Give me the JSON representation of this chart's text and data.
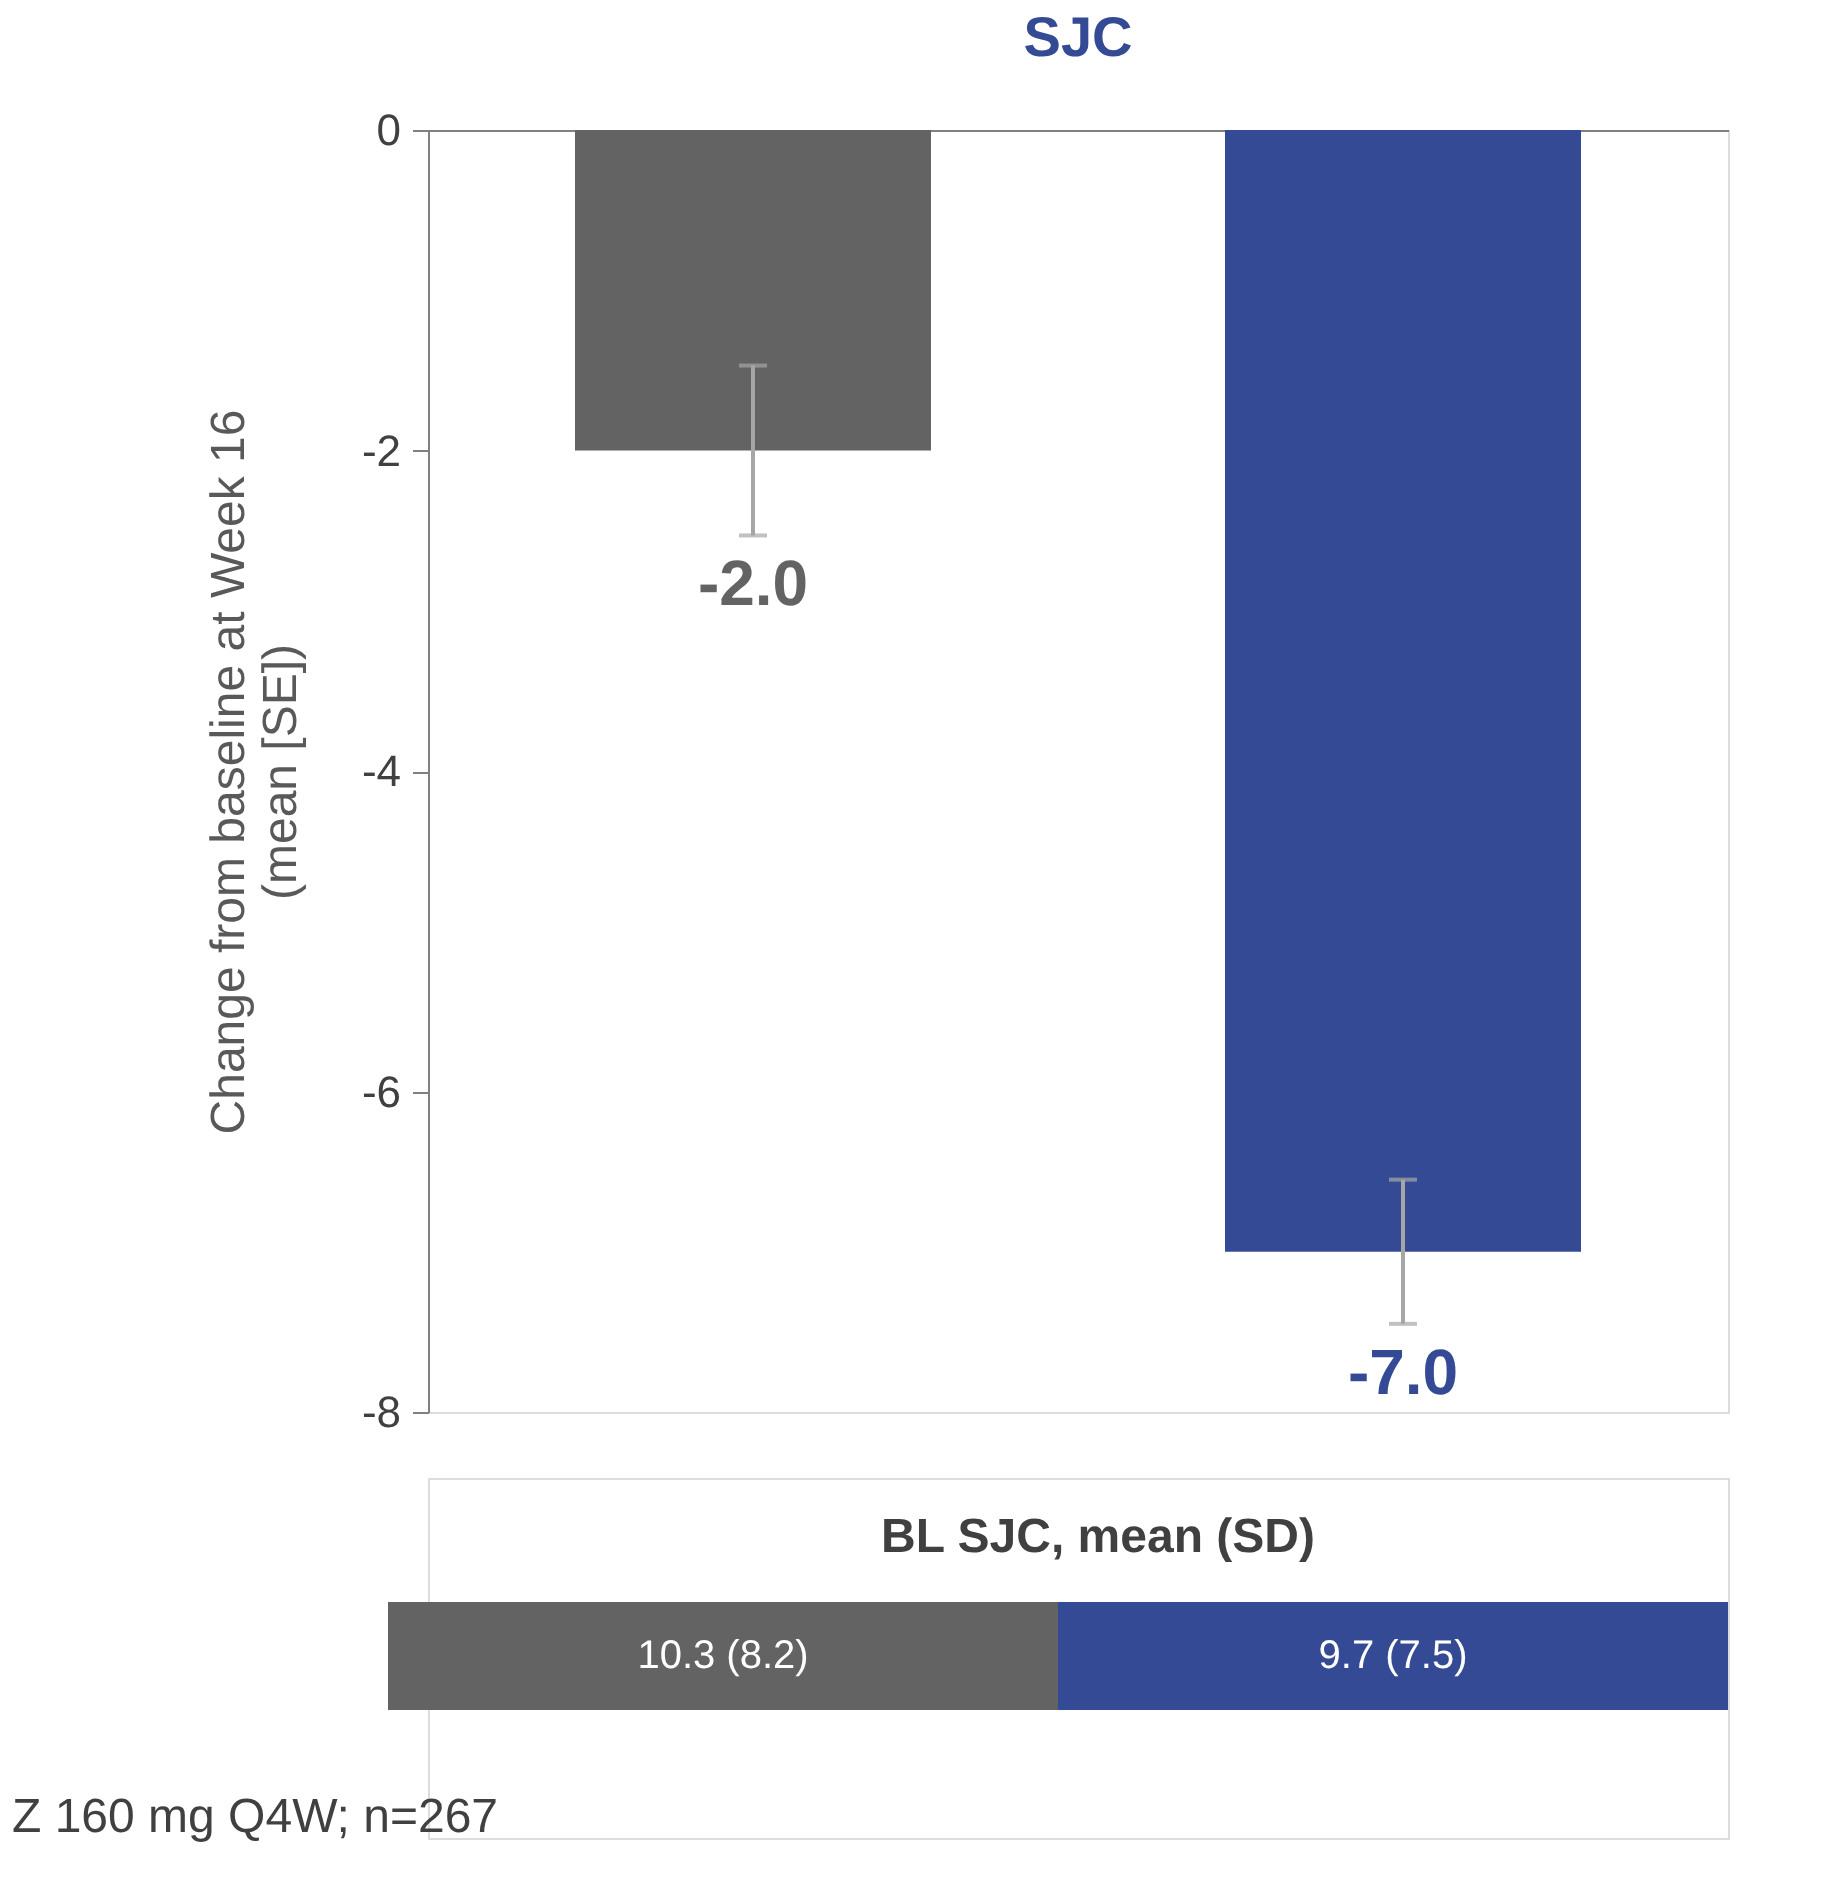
{
  "chart_data": {
    "type": "bar",
    "title": "SJC",
    "ylabel": "Change from baseline at Week 16\n(mean [SE])",
    "categories": [
      null,
      null
    ],
    "values": [
      -2.0,
      -7.0
    ],
    "colors": [
      "#636363",
      "#344a94"
    ],
    "errors": [
      0.53,
      0.45
    ],
    "value_labels": [
      "-2.0",
      "-7.0"
    ],
    "ylim": [
      -8,
      0
    ],
    "yticks": [
      0,
      -2,
      -4,
      -6,
      -8
    ],
    "grid": false,
    "annotations": [
      "BL SJC, mean (SD)",
      "10.3 (8.2)",
      "9.7 (7.5)",
      "Z 160 mg Q4W; n=267"
    ]
  }
}
